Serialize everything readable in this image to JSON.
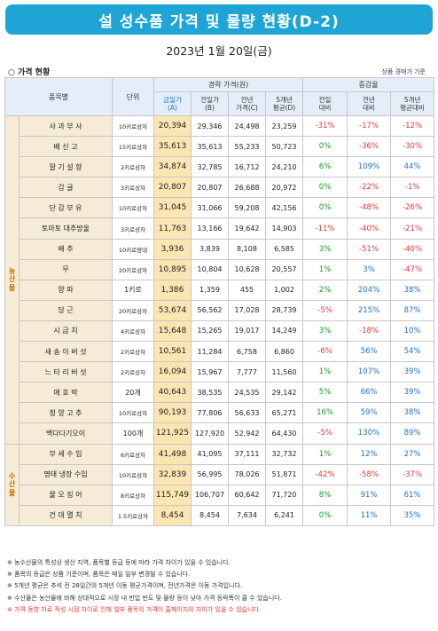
{
  "title": "설 성수품 가격 및 물량 현황(D-2)",
  "date": "2023년 1월 20일(금)",
  "section": "○ 가격 현황",
  "basis": "상품 경매가 기준",
  "headers": {
    "item": "품목별",
    "unit": "단위",
    "price_group": "경락 가격(원)",
    "change_group": "증감율",
    "today": "금일가\n(A)",
    "prev_day": "전일가\n(B)",
    "prev_year": "전년\n가격(C)",
    "avg5": "5개년\n평균(D)",
    "vs_prev_day": "전일\n대비",
    "vs_prev_year": "전년\n대비",
    "vs_avg5": "5개년\n평균대비"
  },
  "categories": [
    {
      "label": "농\n산\n물"
    },
    {
      "label": "수\n산\n물"
    }
  ],
  "rows": [
    {
      "name": "사 과 부 사",
      "unit": "10키로상자",
      "today": "20,394",
      "prev_day": "29,346",
      "prev_year": "24,498",
      "avg5": "23,259",
      "c1": "-31%",
      "c2": "-17%",
      "c3": "-12%"
    },
    {
      "name": "배 신 고",
      "unit": "15키로상자",
      "today": "35,613",
      "prev_day": "35,613",
      "prev_year": "55,233",
      "avg5": "50,723",
      "c1": "0%",
      "c2": "-36%",
      "c3": "-30%"
    },
    {
      "name": "딸 기 설 향",
      "unit": "2키로상자",
      "today": "34,874",
      "prev_day": "32,785",
      "prev_year": "16,712",
      "avg5": "24,210",
      "c1": "6%",
      "c2": "109%",
      "c3": "44%"
    },
    {
      "name": "감 귤",
      "unit": "3키로상자",
      "today": "20,807",
      "prev_day": "20,807",
      "prev_year": "26,688",
      "avg5": "20,972",
      "c1": "0%",
      "c2": "-22%",
      "c3": "-1%"
    },
    {
      "name": "단 감 부 유",
      "unit": "10키로상자",
      "today": "31,045",
      "prev_day": "31,066",
      "prev_year": "59,208",
      "avg5": "42,156",
      "c1": "0%",
      "c2": "-48%",
      "c3": "-26%"
    },
    {
      "name": "토마토 대추방울",
      "unit": "3키로상자",
      "today": "11,763",
      "prev_day": "13,166",
      "prev_year": "19,642",
      "avg5": "14,903",
      "c1": "-11%",
      "c2": "-40%",
      "c3": "-21%"
    },
    {
      "name": "배 추",
      "unit": "10키로망대",
      "today": "3,936",
      "prev_day": "3,839",
      "prev_year": "8,108",
      "avg5": "6,585",
      "c1": "3%",
      "c2": "-51%",
      "c3": "-40%"
    },
    {
      "name": "무",
      "unit": "20키로상자",
      "today": "10,895",
      "prev_day": "10,804",
      "prev_year": "10,628",
      "avg5": "20,557",
      "c1": "1%",
      "c2": "3%",
      "c3": "-47%"
    },
    {
      "name": "양 파",
      "unit": "1키로",
      "today": "1,386",
      "prev_day": "1,359",
      "prev_year": "455",
      "avg5": "1,002",
      "c1": "2%",
      "c2": "204%",
      "c3": "38%"
    },
    {
      "name": "당 근",
      "unit": "20키로상자",
      "today": "53,674",
      "prev_day": "56,562",
      "prev_year": "17,028",
      "avg5": "28,739",
      "c1": "-5%",
      "c2": "215%",
      "c3": "87%"
    },
    {
      "name": "시 금 치",
      "unit": "4키로상자",
      "today": "15,648",
      "prev_day": "15,265",
      "prev_year": "19,017",
      "avg5": "14,249",
      "c1": "3%",
      "c2": "-18%",
      "c3": "10%"
    },
    {
      "name": "새 송 이 버 섯",
      "unit": "2키로상자",
      "today": "10,561",
      "prev_day": "11,284",
      "prev_year": "6,758",
      "avg5": "6,860",
      "c1": "-6%",
      "c2": "56%",
      "c3": "54%"
    },
    {
      "name": "느 타 리 버 섯",
      "unit": "2키로상자",
      "today": "16,094",
      "prev_day": "15,967",
      "prev_year": "7,777",
      "avg5": "11,560",
      "c1": "1%",
      "c2": "107%",
      "c3": "39%"
    },
    {
      "name": "애 호 박",
      "unit": "20개",
      "today": "40,643",
      "prev_day": "38,535",
      "prev_year": "24,535",
      "avg5": "29,142",
      "c1": "5%",
      "c2": "66%",
      "c3": "39%"
    },
    {
      "name": "청 양 고 추",
      "unit": "10키로상자",
      "today": "90,193",
      "prev_day": "77,806",
      "prev_year": "56,633",
      "avg5": "65,271",
      "c1": "16%",
      "c2": "59%",
      "c3": "38%"
    },
    {
      "name": "백다다기오이",
      "unit": "100개",
      "today": "121,925",
      "prev_day": "127,920",
      "prev_year": "52,942",
      "avg5": "64,430",
      "c1": "-5%",
      "c2": "130%",
      "c3": "89%"
    },
    {
      "name": "부 세 수 입",
      "unit": "6키로상자",
      "today": "41,498",
      "prev_day": "41,095",
      "prev_year": "37,111",
      "avg5": "32,732",
      "c1": "1%",
      "c2": "12%",
      "c3": "27%"
    },
    {
      "name": "명태 냉장 수입",
      "unit": "10키로상자",
      "today": "32,839",
      "prev_day": "56,995",
      "prev_year": "78,026",
      "avg5": "51,871",
      "c1": "-42%",
      "c2": "-58%",
      "c3": "-37%"
    },
    {
      "name": "물 오 징 어",
      "unit": "8키로상자",
      "today": "115,749",
      "prev_day": "106,707",
      "prev_year": "60,642",
      "avg5": "71,720",
      "c1": "8%",
      "c2": "91%",
      "c3": "61%"
    },
    {
      "name": "건 대 멸 치",
      "unit": "1.5키로상자",
      "today": "8,454",
      "prev_day": "8,454",
      "prev_year": "7,634",
      "avg5": "6,241",
      "c1": "0%",
      "c2": "11%",
      "c3": "35%"
    }
  ],
  "notes": [
    "※ 농수산물의 특성상 생산 지역, 품목별 등급 등에 따라 가격 차이가 있을 수 있습니다.",
    "※ 품목의 등급은 상품 기준이며, 품목은 매일 일부 변경될 수 있습니다.",
    "※ 5개년 평균은 추석 전 28일간의 5개년 이동 평균가격이며, 전년가격은 이동 가격입니다.",
    "※ 수산물은 농산물에 비해 상대적으로 시장 내 반입 빈도 및 물량 등이 낮아 가격 등락폭이 클 수 있습니다.",
    "※ 가격 동향 자료 작성 시점 차이로 인해 일부 품목의 가격이 홈페이지와 차이가 있을 수 있습니다."
  ],
  "colors": {
    "banner": "#1ea5d6",
    "negative": "#e33333",
    "positive": "#1a9a2a",
    "blue": "#1f6fd0",
    "today_bg": "#fbe6b2",
    "name_bg": "#f5ebd6"
  }
}
